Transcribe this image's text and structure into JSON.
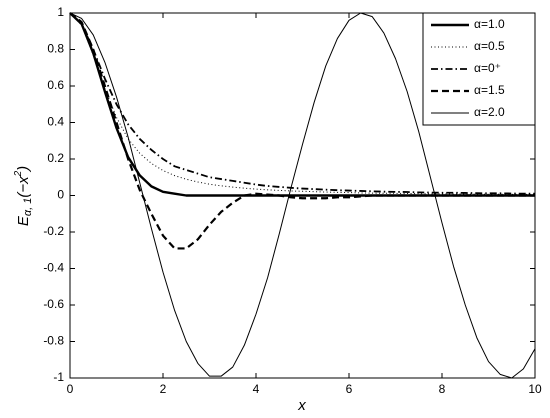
{
  "chart_data": {
    "type": "line",
    "xlabel": "x",
    "ylabel": {
      "base": "E",
      "sub": "α, 1",
      "main": "(−x",
      "sup": "2",
      "close": ")"
    },
    "x": [
      0,
      0.25,
      0.5,
      0.75,
      1,
      1.25,
      1.5,
      1.75,
      2,
      2.25,
      2.5,
      2.75,
      3,
      3.25,
      3.5,
      3.75,
      4,
      4.25,
      4.5,
      4.75,
      5,
      5.25,
      5.5,
      5.75,
      6,
      6.25,
      6.5,
      6.75,
      7,
      7.25,
      7.5,
      7.75,
      8,
      8.25,
      8.5,
      8.75,
      9,
      9.25,
      9.5,
      9.75,
      10
    ],
    "series": [
      {
        "name": "α=1.0",
        "color": "#000000",
        "linestyle": "bold-solid",
        "values": [
          1,
          0.94,
          0.78,
          0.57,
          0.37,
          0.21,
          0.11,
          0.05,
          0.02,
          0.01,
          0,
          0,
          0,
          0,
          0,
          0,
          0,
          0,
          0,
          0,
          0,
          0,
          0,
          0,
          0,
          0,
          0,
          0,
          0,
          0,
          0,
          0,
          0,
          0,
          0,
          0,
          0,
          0,
          0,
          0,
          0
        ]
      },
      {
        "name": "α=0.5",
        "color": "#000000",
        "linestyle": "dotted",
        "values": [
          1,
          0.933,
          0.77,
          0.585,
          0.428,
          0.31,
          0.231,
          0.176,
          0.137,
          0.109,
          0.089,
          0.074,
          0.062,
          0.053,
          0.046,
          0.04,
          0.035,
          0.031,
          0.028,
          0.025,
          0.023,
          0.021,
          0.019,
          0.017,
          0.016,
          0.014,
          0.013,
          0.012,
          0.012,
          0.011,
          0.01,
          0.009,
          0.009,
          0.008,
          0.008,
          0.007,
          0.007,
          0.007,
          0.006,
          0.006,
          0.006
        ]
      },
      {
        "name": "α=0⁺",
        "color": "#000000",
        "linestyle": "dash-dot",
        "values": [
          1,
          0.94,
          0.8,
          0.64,
          0.5,
          0.39,
          0.31,
          0.25,
          0.2,
          0.16,
          0.14,
          0.12,
          0.1,
          0.09,
          0.08,
          0.07,
          0.06,
          0.052,
          0.047,
          0.042,
          0.038,
          0.035,
          0.032,
          0.029,
          0.027,
          0.025,
          0.023,
          0.021,
          0.02,
          0.019,
          0.017,
          0.016,
          0.015,
          0.015,
          0.014,
          0.013,
          0.012,
          0.012,
          0.011,
          0.01,
          0.01
        ]
      },
      {
        "name": "α=1.5",
        "color": "#000000",
        "linestyle": "bold-dashed",
        "values": [
          1,
          0.95,
          0.8,
          0.6,
          0.4,
          0.2,
          0.03,
          -0.1,
          -0.22,
          -0.29,
          -0.29,
          -0.24,
          -0.16,
          -0.09,
          -0.04,
          0,
          0.01,
          0.005,
          0,
          -0.01,
          -0.015,
          -0.015,
          -0.015,
          -0.01,
          -0.01,
          -0.005,
          0,
          0,
          0,
          0,
          0,
          0,
          0,
          0,
          0,
          0,
          0,
          0,
          0,
          0,
          0
        ]
      },
      {
        "name": "α=2.0",
        "color": "#000000",
        "linestyle": "solid",
        "values": [
          1,
          0.97,
          0.88,
          0.73,
          0.54,
          0.32,
          0.07,
          -0.18,
          -0.42,
          -0.63,
          -0.8,
          -0.92,
          -0.99,
          -0.99,
          -0.94,
          -0.82,
          -0.65,
          -0.45,
          -0.21,
          0.04,
          0.28,
          0.51,
          0.71,
          0.86,
          0.96,
          1,
          0.98,
          0.89,
          0.75,
          0.57,
          0.35,
          0.1,
          -0.15,
          -0.39,
          -0.6,
          -0.78,
          -0.91,
          -0.98,
          -1,
          -0.95,
          -0.84
        ]
      }
    ],
    "xlim": [
      0,
      10
    ],
    "xticks": [
      0,
      2,
      4,
      6,
      8,
      10
    ],
    "ylim": [
      -1,
      1
    ],
    "yticks": [
      -1,
      -0.8,
      -0.6,
      -0.4,
      -0.2,
      0,
      0.2,
      0.4,
      0.6,
      0.8,
      1
    ],
    "grid": false,
    "legend": "top-right"
  }
}
